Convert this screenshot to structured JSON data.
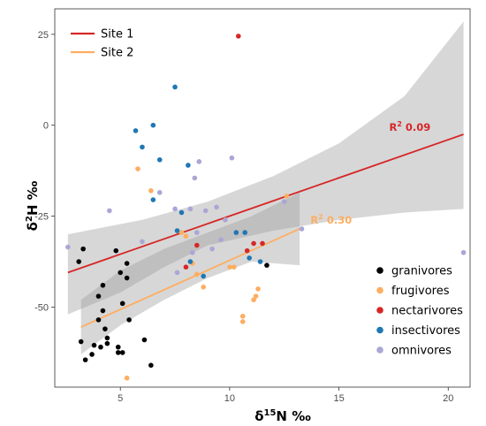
{
  "chart_data": {
    "type": "scatter",
    "x_axis": {
      "label_prefix": "δ",
      "label_sup": "15",
      "label_suffix": "N ‰",
      "range": [
        2.0,
        21.0
      ],
      "ticks": [
        5,
        10,
        15,
        20
      ]
    },
    "y_axis": {
      "label_prefix": "δ",
      "label_sup": "2",
      "label_suffix": "H ‰",
      "range": [
        -72,
        32
      ],
      "ticks": [
        25,
        0,
        -25,
        -50
      ]
    },
    "grid": false,
    "line_legend": {
      "placement": "top-left",
      "items": [
        {
          "name": "Site 1",
          "color": "#d62728"
        },
        {
          "name": "Site 2",
          "color": "#fdae61"
        }
      ]
    },
    "point_legend": {
      "placement": "bottom-right",
      "items": [
        {
          "name": "granivores",
          "color": "#000000"
        },
        {
          "name": "frugivores",
          "color": "#fdae61"
        },
        {
          "name": "nectarivores",
          "color": "#d62728"
        },
        {
          "name": "insectivores",
          "color": "#1f77b4"
        },
        {
          "name": "omnivores",
          "color": "#aaa6d6"
        }
      ]
    },
    "regression_lines": [
      {
        "series": "Site 1",
        "color": "#d62728",
        "x": [
          2.6,
          20.7
        ],
        "y": [
          -40.5,
          -2.5
        ],
        "ci_upper": [
          [
            2.6,
            -30
          ],
          [
            6,
            -26
          ],
          [
            9,
            -21
          ],
          [
            12,
            -14
          ],
          [
            15,
            -5
          ],
          [
            18,
            8
          ],
          [
            20.7,
            28.5
          ]
        ],
        "ci_lower": [
          [
            2.6,
            -52
          ],
          [
            5,
            -46
          ],
          [
            7,
            -39
          ],
          [
            9,
            -33
          ],
          [
            12,
            -29
          ],
          [
            15,
            -26
          ],
          [
            18,
            -24
          ],
          [
            20.7,
            -23
          ]
        ],
        "annotation_prefix": "R",
        "annotation_sup": "2",
        "annotation_value": "0.09",
        "annotation_pos": [
          17.3,
          -1.5
        ]
      },
      {
        "series": "Site 2",
        "color": "#fdae61",
        "x": [
          3.2,
          13.2
        ],
        "y": [
          -55.5,
          -28.5
        ],
        "ci_upper": [
          [
            3.2,
            -48
          ],
          [
            5,
            -40
          ],
          [
            7,
            -34
          ],
          [
            9,
            -29.5
          ],
          [
            11,
            -25
          ],
          [
            13.2,
            -18.5
          ]
        ],
        "ci_lower": [
          [
            3.2,
            -63
          ],
          [
            5,
            -55
          ],
          [
            7,
            -48
          ],
          [
            9,
            -42
          ],
          [
            11,
            -37.5
          ],
          [
            13.2,
            -38.5
          ]
        ],
        "annotation_prefix": "R",
        "annotation_sup": "2",
        "annotation_value": "0.30",
        "annotation_pos": [
          13.7,
          -27
        ]
      }
    ],
    "series": [
      {
        "name": "granivores",
        "color": "#000000",
        "points": [
          [
            3.1,
            -37.5
          ],
          [
            3.2,
            -59.5
          ],
          [
            3.3,
            -34
          ],
          [
            3.4,
            -64.5
          ],
          [
            3.7,
            -63
          ],
          [
            3.8,
            -60.5
          ],
          [
            4.0,
            -47
          ],
          [
            4.0,
            -53.5
          ],
          [
            4.1,
            -61
          ],
          [
            4.2,
            -51
          ],
          [
            4.2,
            -44
          ],
          [
            4.3,
            -56
          ],
          [
            4.4,
            -58.5
          ],
          [
            4.4,
            -60
          ],
          [
            4.8,
            -34.5
          ],
          [
            4.9,
            -61
          ],
          [
            4.9,
            -62.5
          ],
          [
            5.0,
            -40.5
          ],
          [
            5.1,
            -49
          ],
          [
            5.1,
            -62.5
          ],
          [
            5.3,
            -38
          ],
          [
            5.3,
            -42
          ],
          [
            5.4,
            -53.5
          ],
          [
            6.1,
            -59
          ],
          [
            6.4,
            -66
          ],
          [
            11.7,
            -38.5
          ]
        ]
      },
      {
        "name": "frugivores",
        "color": "#fdae61",
        "points": [
          [
            5.3,
            -69.5
          ],
          [
            5.8,
            -12
          ],
          [
            6.4,
            -18
          ],
          [
            7.8,
            -29.5
          ],
          [
            8.0,
            -30.5
          ],
          [
            8.3,
            -38
          ],
          [
            8.5,
            -41
          ],
          [
            8.8,
            -44.5
          ],
          [
            10.0,
            -39
          ],
          [
            10.2,
            -39
          ],
          [
            10.6,
            -54
          ],
          [
            10.6,
            -52.5
          ],
          [
            11.1,
            -48
          ],
          [
            11.2,
            -47
          ],
          [
            11.3,
            -45
          ],
          [
            12.6,
            -19.5
          ]
        ]
      },
      {
        "name": "nectarivores",
        "color": "#d62728",
        "points": [
          [
            10.4,
            24.5
          ],
          [
            8.5,
            -33
          ],
          [
            8.0,
            -39
          ],
          [
            10.8,
            -34.5
          ],
          [
            11.1,
            -32.5
          ],
          [
            11.5,
            -32.5
          ]
        ]
      },
      {
        "name": "insectivores",
        "color": "#1f77b4",
        "points": [
          [
            7.5,
            10.5
          ],
          [
            5.7,
            -1.5
          ],
          [
            6.5,
            0
          ],
          [
            6.0,
            -6
          ],
          [
            6.8,
            -9.5
          ],
          [
            8.1,
            -11
          ],
          [
            6.5,
            -20.5
          ],
          [
            7.8,
            -24
          ],
          [
            7.6,
            -29
          ],
          [
            8.2,
            -37.5
          ],
          [
            8.8,
            -41.5
          ],
          [
            10.3,
            -29.5
          ],
          [
            10.7,
            -29.5
          ],
          [
            10.9,
            -36.5
          ],
          [
            11.4,
            -37.5
          ]
        ]
      },
      {
        "name": "omnivores",
        "color": "#aaa6d6",
        "points": [
          [
            2.6,
            -33.5
          ],
          [
            4.5,
            -23.5
          ],
          [
            6.0,
            -32
          ],
          [
            6.8,
            -18.5
          ],
          [
            7.5,
            -23
          ],
          [
            7.6,
            -40.5
          ],
          [
            8.2,
            -23
          ],
          [
            8.3,
            -35
          ],
          [
            8.4,
            -14.5
          ],
          [
            8.5,
            -29.5
          ],
          [
            8.6,
            -10
          ],
          [
            8.9,
            -23.5
          ],
          [
            9.2,
            -34
          ],
          [
            9.4,
            -22.5
          ],
          [
            9.6,
            -31.5
          ],
          [
            9.8,
            -26
          ],
          [
            10.1,
            -9
          ],
          [
            12.5,
            -21
          ],
          [
            13.3,
            -28.5
          ],
          [
            20.7,
            -35
          ]
        ]
      }
    ]
  }
}
